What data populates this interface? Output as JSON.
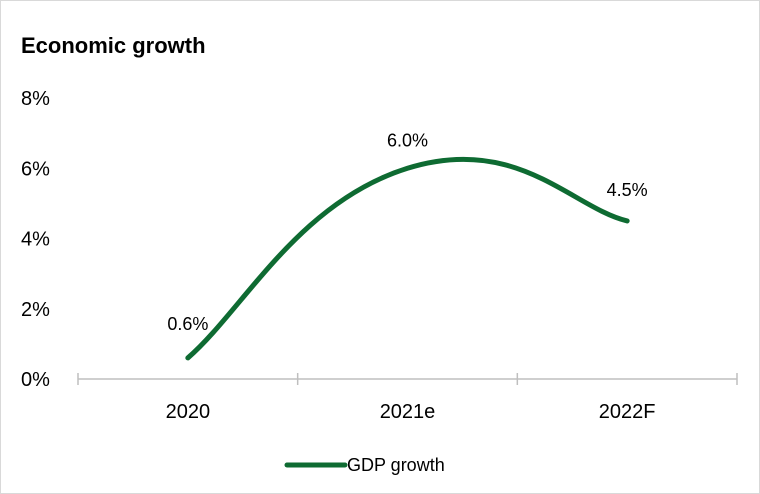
{
  "chart_data": {
    "type": "line",
    "title": "Economic growth",
    "xlabel": "",
    "ylabel": "",
    "categories": [
      "2020",
      "2021e",
      "2022F"
    ],
    "series": [
      {
        "name": "GDP growth",
        "values": [
          0.6,
          6.0,
          4.5
        ],
        "value_labels": [
          "0.6%",
          "6.0%",
          "4.5%"
        ],
        "color": "#0e6b32"
      }
    ],
    "ylim": [
      0,
      8
    ],
    "yticks": [
      0,
      2,
      4,
      6,
      8
    ],
    "ytick_labels": [
      "0%",
      "2%",
      "4%",
      "6%",
      "8%"
    ],
    "smooth": true,
    "grid": false,
    "legend_position": "bottom"
  }
}
